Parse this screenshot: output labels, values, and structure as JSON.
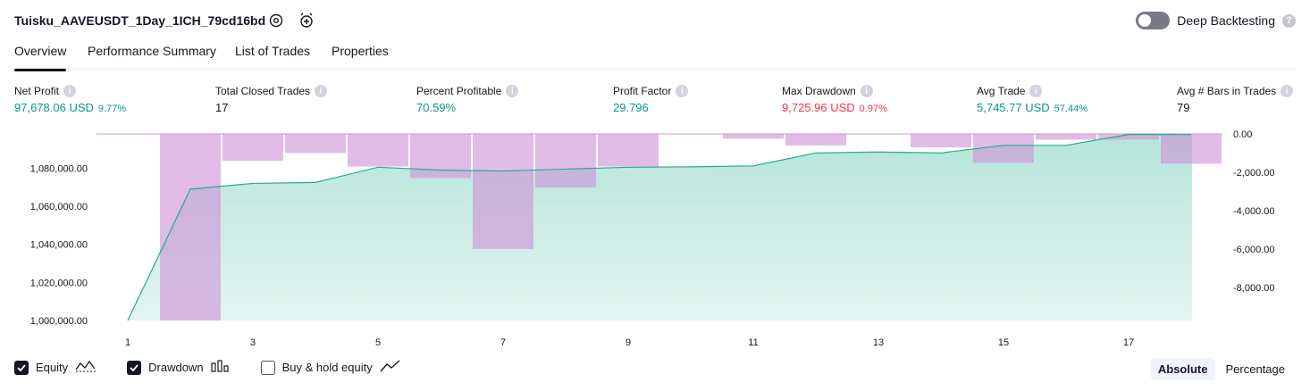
{
  "header": {
    "title": "Tuisku_AAVEUSDT_1Day_1ICH_79cd16bd",
    "deep_backtesting_label": "Deep Backtesting",
    "help_glyph": "?"
  },
  "tabs": [
    {
      "label": "Overview",
      "active": true
    },
    {
      "label": "Performance Summary",
      "active": false
    },
    {
      "label": "List of Trades",
      "active": false
    },
    {
      "label": "Properties",
      "active": false
    }
  ],
  "metrics": [
    {
      "label": "Net Profit",
      "value": "97,678.06 USD",
      "pct": "9.77%",
      "color": "green"
    },
    {
      "label": "Total Closed Trades",
      "value": "17",
      "pct": "",
      "color": "dark"
    },
    {
      "label": "Percent Profitable",
      "value": "70.59%",
      "pct": "",
      "color": "green"
    },
    {
      "label": "Profit Factor",
      "value": "29.796",
      "pct": "",
      "color": "green"
    },
    {
      "label": "Max Drawdown",
      "value": "9,725.96 USD",
      "pct": "0.97%",
      "color": "red"
    },
    {
      "label": "Avg Trade",
      "value": "5,745.77 USD",
      "pct": "57.44%",
      "color": "green"
    },
    {
      "label": "Avg # Bars in Trades",
      "value": "79",
      "pct": "",
      "color": "dark"
    }
  ],
  "info_glyph": "i",
  "chart_data": {
    "type": "area",
    "x": [
      1,
      2,
      3,
      4,
      5,
      6,
      7,
      8,
      9,
      10,
      11,
      12,
      13,
      14,
      15,
      16,
      17,
      18
    ],
    "x_ticks": [
      "1",
      "3",
      "5",
      "7",
      "9",
      "11",
      "13",
      "15",
      "17"
    ],
    "series": [
      {
        "name": "Equity",
        "values": [
          1000000,
          1069000,
          1072000,
          1072500,
          1080500,
          1079000,
          1078500,
          1079500,
          1080500,
          1080700,
          1081200,
          1088000,
          1088500,
          1088000,
          1092000,
          1092000,
          1097700,
          1097678
        ]
      },
      {
        "name": "Drawdown",
        "values": [
          0,
          -9726,
          -1400,
          -1000,
          -1700,
          -2300,
          -6000,
          -2800,
          -1700,
          0,
          -250,
          -600,
          0,
          -700,
          -1500,
          -300,
          -300,
          -1550
        ]
      }
    ],
    "y_left_ticks": [
      "1,000,000.00",
      "1,020,000.00",
      "1,040,000.00",
      "1,060,000.00",
      "1,080,000.00"
    ],
    "y_right_ticks": [
      "0.00",
      "-2,000.00",
      "-4,000.00",
      "-6,000.00",
      "-8,000.00"
    ],
    "ylim_left": [
      1000000,
      1098000
    ],
    "ylim_right": [
      -9726,
      0
    ],
    "colors": {
      "equity_line": "#22ab94",
      "equity_fill": "#b2e3d7",
      "drawdown": "#ce93d8",
      "overlap": "#b0b0e6"
    }
  },
  "legend": [
    {
      "label": "Equity",
      "checked": true,
      "icon": "equity-wave-icon"
    },
    {
      "label": "Drawdown",
      "checked": true,
      "icon": "drawdown-bars-icon"
    },
    {
      "label": "Buy & hold equity",
      "checked": false,
      "icon": "buy-hold-line-icon"
    }
  ],
  "mode": {
    "absolute": "Absolute",
    "percentage": "Percentage"
  }
}
